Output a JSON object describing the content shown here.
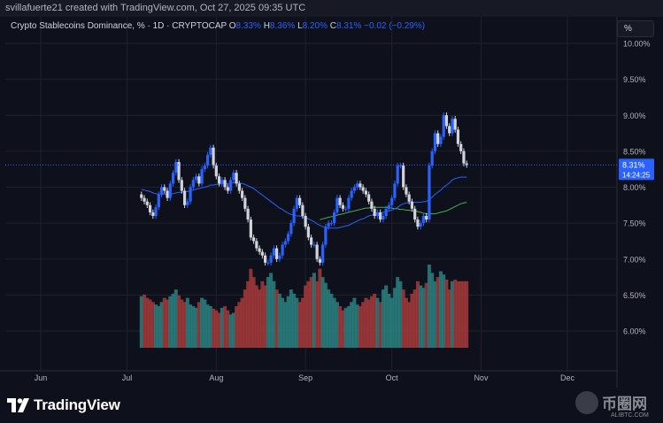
{
  "header": {
    "text": "svillafuerte21 created with TradingView.com, Oct 27, 2025 09:35 UTC"
  },
  "legend": {
    "symbol": "Crypto Stablecoins Dominance, % · 1D · CRYPTOCAP",
    "o_label": "O",
    "o_value": "8.33%",
    "h_label": "H",
    "h_value": "8.36%",
    "l_label": "L",
    "l_value": "8.20%",
    "c_label": "C",
    "c_value": "8.31%",
    "change": "−0.02 (−0.29%)"
  },
  "scale_button": "%",
  "price_label": {
    "value": "8.31%",
    "countdown": "14:24:25"
  },
  "brand": {
    "logo_text": "TradingView"
  },
  "watermark": {
    "cn": "币圈网",
    "en": "ALIBTC.COM"
  },
  "colors": {
    "up": "#2962ff",
    "down": "#d1d4dc",
    "ma_fast": "#2962ff",
    "ma_slow": "#4caf50",
    "vol_up": "#2a8080",
    "vol_down": "#a33a3a",
    "background": "#0e111b"
  },
  "chart_data": {
    "type": "candlestick",
    "title": "Crypto Stablecoins Dominance, % · 1D · CRYPTOCAP",
    "ylabel": "%",
    "ylim": [
      5.75,
      10.2
    ],
    "y_ticks": [
      "10.00%",
      "9.50%",
      "9.00%",
      "8.50%",
      "8.00%",
      "7.50%",
      "7.00%",
      "6.50%",
      "6.00%"
    ],
    "y_tick_values": [
      10.0,
      9.5,
      9.0,
      8.5,
      8.0,
      7.5,
      7.0,
      6.5,
      6.0
    ],
    "x_ticks": [
      "Jun",
      "Jul",
      "Aug",
      "Sep",
      "Oct",
      "Nov",
      "Dec"
    ],
    "x_tick_dates": [
      "2025-06-01",
      "2025-07-01",
      "2025-08-01",
      "2025-09-01",
      "2025-10-01",
      "2025-11-01",
      "2025-12-01"
    ],
    "grid": true,
    "last_date": "2025-10-27",
    "close": [
      7.85,
      7.8,
      7.75,
      7.65,
      7.6,
      7.72,
      7.9,
      8.0,
      7.95,
      7.85,
      8.05,
      8.2,
      8.35,
      8.1,
      7.95,
      7.75,
      7.8,
      8.0,
      8.1,
      8.15,
      8.05,
      8.25,
      8.3,
      8.45,
      8.55,
      8.3,
      8.15,
      8.05,
      8.1,
      8.0,
      7.95,
      8.1,
      8.2,
      8.05,
      7.95,
      7.85,
      7.7,
      7.55,
      7.3,
      7.25,
      7.15,
      7.1,
      7.05,
      6.95,
      6.95,
      7.05,
      7.15,
      7.0,
      7.05,
      7.2,
      7.25,
      7.35,
      7.5,
      7.7,
      7.85,
      7.75,
      7.6,
      7.45,
      7.3,
      7.2,
      7.2,
      7.0,
      6.95,
      7.2,
      7.45,
      7.5,
      7.5,
      7.65,
      7.85,
      7.75,
      7.7,
      7.7,
      7.85,
      7.95,
      8.0,
      8.05,
      8.0,
      7.95,
      7.9,
      7.8,
      7.7,
      7.6,
      7.65,
      7.55,
      7.6,
      7.7,
      7.75,
      7.85,
      8.05,
      8.3,
      8.3,
      8.0,
      7.9,
      7.8,
      7.7,
      7.55,
      7.45,
      7.5,
      7.6,
      7.55,
      8.3,
      8.5,
      8.75,
      8.6,
      8.7,
      9.0,
      8.85,
      8.75,
      8.95,
      8.8,
      8.6,
      8.5,
      8.33,
      8.31
    ],
    "ma_fast": [
      7.97,
      7.96,
      7.95,
      7.94,
      7.92,
      7.91,
      7.9,
      7.9,
      7.9,
      7.9,
      7.9,
      7.91,
      7.92,
      7.93,
      7.93,
      7.94,
      7.94,
      7.95,
      7.96,
      7.97,
      7.98,
      7.99,
      8.0,
      8.01,
      8.03,
      8.03,
      8.04,
      8.04,
      8.05,
      8.05,
      8.05,
      8.06,
      8.06,
      8.06,
      8.06,
      8.05,
      8.04,
      8.02,
      8.0,
      7.98,
      7.95,
      7.92,
      7.89,
      7.86,
      7.83,
      7.8,
      7.77,
      7.74,
      7.71,
      7.69,
      7.66,
      7.64,
      7.62,
      7.61,
      7.6,
      7.6,
      7.59,
      7.58,
      7.56,
      7.54,
      7.52,
      7.49,
      7.47,
      7.45,
      7.44,
      7.43,
      7.43,
      7.43,
      7.43,
      7.44,
      7.45,
      7.46,
      7.47,
      7.49,
      7.51,
      7.53,
      7.55,
      7.56,
      7.58,
      7.6,
      7.61,
      7.62,
      7.63,
      7.64,
      7.65,
      7.66,
      7.67,
      7.68,
      7.7,
      7.72,
      7.75,
      7.77,
      7.78,
      7.79,
      7.79,
      7.79,
      7.79,
      7.79,
      7.8,
      7.8,
      7.83,
      7.86,
      7.9,
      7.93,
      7.96,
      8.0,
      8.03,
      8.06,
      8.1,
      8.12,
      8.13,
      8.14,
      8.14,
      8.14
    ],
    "ma_slow_start_index": 62,
    "ma_slow": [
      7.55,
      7.56,
      7.57,
      7.58,
      7.59,
      7.6,
      7.61,
      7.62,
      7.63,
      7.64,
      7.65,
      7.66,
      7.67,
      7.68,
      7.69,
      7.7,
      7.71,
      7.71,
      7.72,
      7.72,
      7.72,
      7.72,
      7.72,
      7.72,
      7.71,
      7.71,
      7.7,
      7.7,
      7.69,
      7.69,
      7.68,
      7.68,
      7.67,
      7.67,
      7.66,
      7.65,
      7.64,
      7.63,
      7.63,
      7.63,
      7.63,
      7.64,
      7.65,
      7.66,
      7.67,
      7.69,
      7.71,
      7.73,
      7.75,
      7.77,
      7.78,
      7.79
    ],
    "volume_relative": [
      0.62,
      0.64,
      0.6,
      0.58,
      0.55,
      0.52,
      0.5,
      0.55,
      0.6,
      0.58,
      0.62,
      0.65,
      0.7,
      0.63,
      0.58,
      0.55,
      0.6,
      0.52,
      0.5,
      0.48,
      0.55,
      0.6,
      0.58,
      0.52,
      0.5,
      0.47,
      0.45,
      0.42,
      0.48,
      0.5,
      0.45,
      0.4,
      0.42,
      0.5,
      0.55,
      0.6,
      0.7,
      0.8,
      0.95,
      0.85,
      0.75,
      0.7,
      0.8,
      0.75,
      0.85,
      0.9,
      0.8,
      0.7,
      0.65,
      0.6,
      0.55,
      0.62,
      0.7,
      0.65,
      0.6,
      0.55,
      0.6,
      0.75,
      0.8,
      0.85,
      0.9,
      0.8,
      0.95,
      0.85,
      0.78,
      0.7,
      0.65,
      0.6,
      0.55,
      0.5,
      0.45,
      0.48,
      0.5,
      0.55,
      0.6,
      0.52,
      0.5,
      0.55,
      0.6,
      0.58,
      0.62,
      0.65,
      0.6,
      0.55,
      0.7,
      0.75,
      0.65,
      0.6,
      0.72,
      0.85,
      0.8,
      0.7,
      0.6,
      0.55,
      0.65,
      0.7,
      0.8,
      0.75,
      0.72,
      0.78,
      1.0,
      0.9,
      0.8,
      0.85,
      0.92,
      0.88,
      0.82,
      0.7,
      0.8,
      0.82,
      0.8,
      0.8,
      0.8,
      0.8
    ]
  }
}
